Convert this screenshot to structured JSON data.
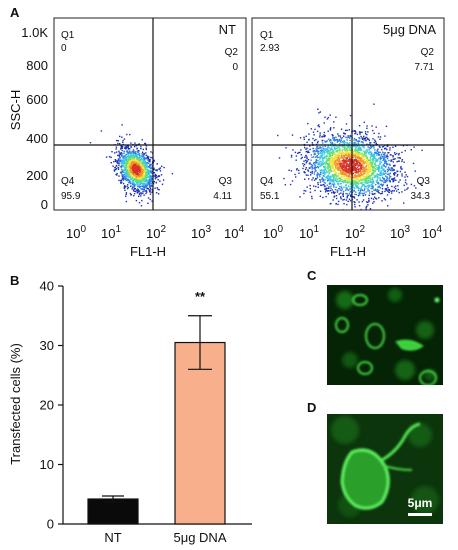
{
  "panels": {
    "A": "A",
    "B": "B",
    "C": "C",
    "D": "D"
  },
  "flow": {
    "ylabel": "SSC-H",
    "xlabel": "FL1-H",
    "y_ticks": [
      "0",
      "200",
      "400",
      "600",
      "800",
      "1.0K"
    ],
    "x_tick_bases": [
      "10",
      "10",
      "10",
      "10",
      "10"
    ],
    "x_tick_exps": [
      "0",
      "1",
      "2",
      "3",
      "4"
    ],
    "plots": [
      {
        "title": "NT",
        "q1": "Q1",
        "q1_val": "0",
        "q2": "Q2",
        "q2_val": "0",
        "q3": "Q3",
        "q3_val": "4.11",
        "q4": "Q4",
        "q4_val": "95.9"
      },
      {
        "title": "5μg DNA",
        "q1": "Q1",
        "q1_val": "2.93",
        "q2": "Q2",
        "q2_val": "7.71",
        "q3": "Q3",
        "q3_val": "34.3",
        "q4": "Q4",
        "q4_val": "55.1"
      }
    ],
    "density_colors": [
      "#1c2fb8",
      "#2f7de0",
      "#3cc6e8",
      "#5fe07a",
      "#f2e23a",
      "#f0922a",
      "#d8322c"
    ]
  },
  "chart_data": [
    {
      "type": "scatter",
      "xlabel": "FL1-H",
      "ylabel": "SSC-H",
      "x_scale": "log",
      "xlim": [
        1,
        10000
      ],
      "ylim": [
        0,
        1024
      ],
      "gates": {
        "x": 150,
        "y": 360
      },
      "series": [
        {
          "name": "NT",
          "cluster_center": [
            50,
            220
          ],
          "quadrant_percent": {
            "Q1": 0,
            "Q2": 0,
            "Q3": 4.11,
            "Q4": 95.9
          }
        },
        {
          "name": "5μg DNA",
          "cluster_center": [
            110,
            240
          ],
          "quadrant_percent": {
            "Q1": 2.93,
            "Q2": 7.71,
            "Q3": 34.3,
            "Q4": 55.1
          }
        }
      ]
    },
    {
      "type": "bar",
      "categories": [
        "NT",
        "5μg DNA"
      ],
      "values": [
        4.2,
        30.5
      ],
      "errors": [
        0.5,
        4.5
      ],
      "colors": [
        "#0a0a0a",
        "#f8b08c"
      ],
      "ylabel": "Transfected cells (%)",
      "ylim": [
        0,
        40
      ],
      "yticks": [
        "0",
        "10",
        "20",
        "30",
        "40"
      ],
      "significance": "**"
    }
  ],
  "micrographs": {
    "scale_bar": "5μm"
  }
}
